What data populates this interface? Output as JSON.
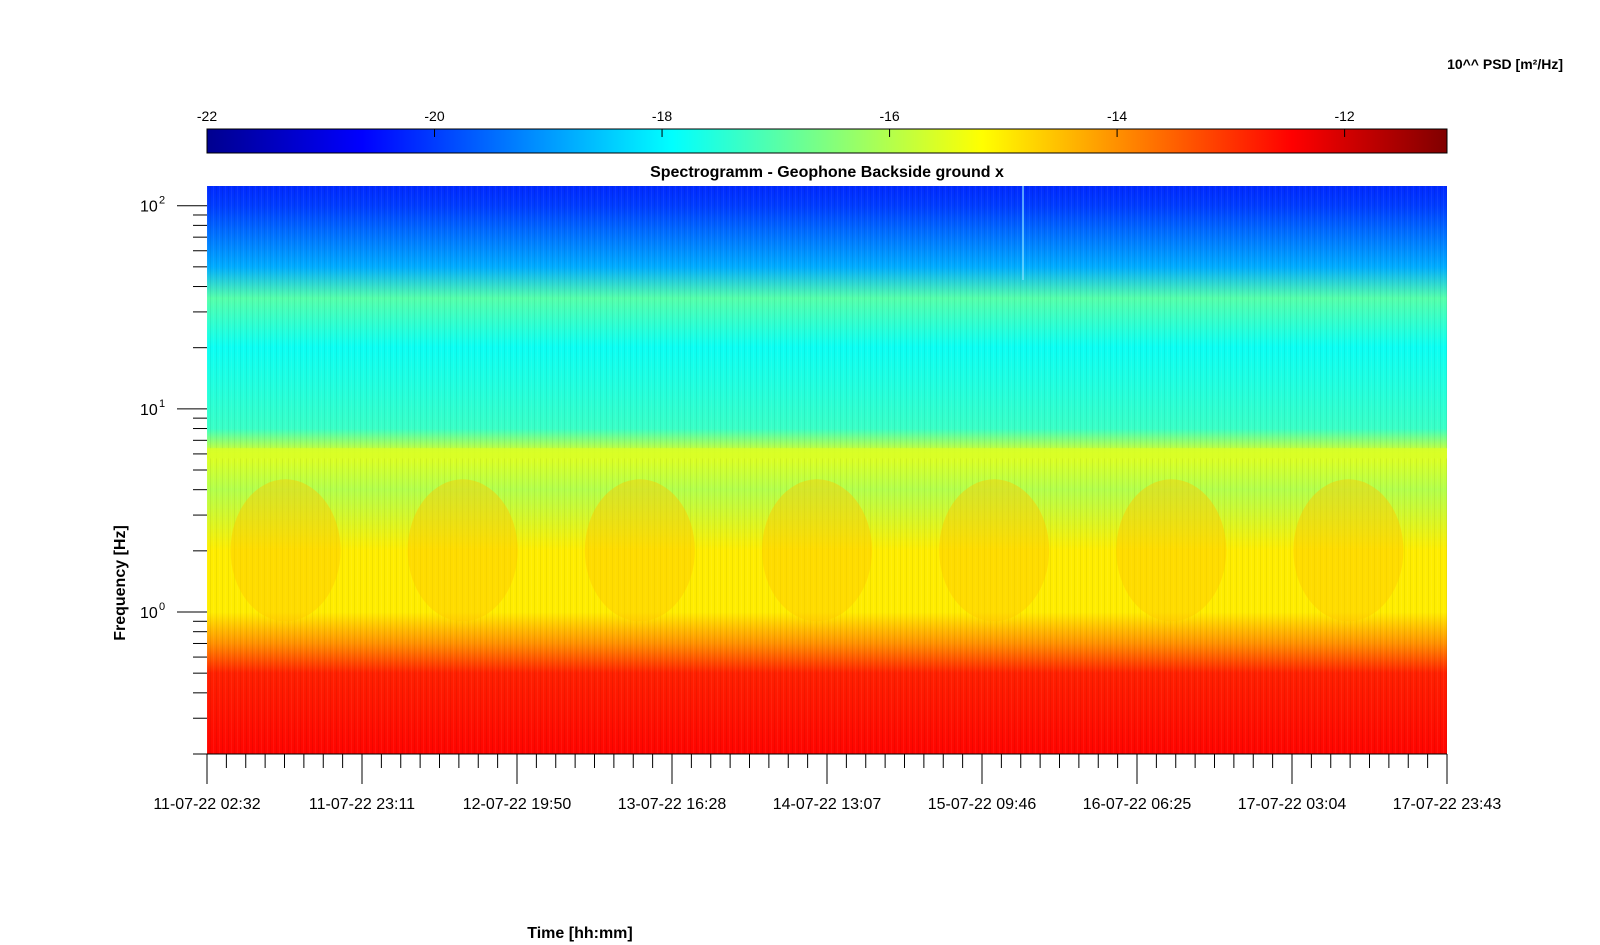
{
  "chart_data": {
    "type": "heatmap",
    "title": "Spectrogramm - Geophone Backside ground x",
    "xlabel": "Time [hh:mm]",
    "ylabel": "Frequency [Hz]",
    "y_scale": "log",
    "ylim": [
      0.2,
      125
    ],
    "x_tick_labels": [
      "11-07-22 02:32",
      "11-07-22 23:11",
      "12-07-22 19:50",
      "13-07-22 16:28",
      "14-07-22 13:07",
      "15-07-22 09:46",
      "16-07-22 06:25",
      "17-07-22 03:04",
      "17-07-22 23:43"
    ],
    "y_ticks": [
      {
        "base": "10",
        "exp": "2",
        "value": 100
      },
      {
        "base": "10",
        "exp": "1",
        "value": 10
      },
      {
        "base": "10",
        "exp": "0",
        "value": 1
      }
    ],
    "colorbar": {
      "label": "10^^ PSD [m²/Hz]",
      "colormap": "jet",
      "range": [
        -22,
        -11.1
      ],
      "ticks": [
        {
          "label": "-22",
          "value": -22
        },
        {
          "label": "-20",
          "value": -20
        },
        {
          "label": "-18",
          "value": -18
        },
        {
          "label": "-16",
          "value": -16
        },
        {
          "label": "-14",
          "value": -14
        },
        {
          "label": "-12",
          "value": -12
        }
      ]
    },
    "approx_psd_profile": [
      {
        "freq_hz": 0.2,
        "log10_psd": -12.5
      },
      {
        "freq_hz": 0.5,
        "log10_psd": -12.8
      },
      {
        "freq_hz": 0.7,
        "log10_psd": -14.0
      },
      {
        "freq_hz": 1.0,
        "log10_psd": -15.0
      },
      {
        "freq_hz": 2.0,
        "log10_psd": -15.0
      },
      {
        "freq_hz": 4.0,
        "log10_psd": -16.0
      },
      {
        "freq_hz": 6.0,
        "log10_psd": -15.5
      },
      {
        "freq_hz": 8.0,
        "log10_psd": -17.3
      },
      {
        "freq_hz": 20.0,
        "log10_psd": -17.8
      },
      {
        "freq_hz": 35.0,
        "log10_psd": -17.0
      },
      {
        "freq_hz": 50.0,
        "log10_psd": -18.8
      },
      {
        "freq_hz": 100.0,
        "log10_psd": -20.0
      },
      {
        "freq_hz": 125.0,
        "log10_psd": -20.2
      }
    ]
  }
}
